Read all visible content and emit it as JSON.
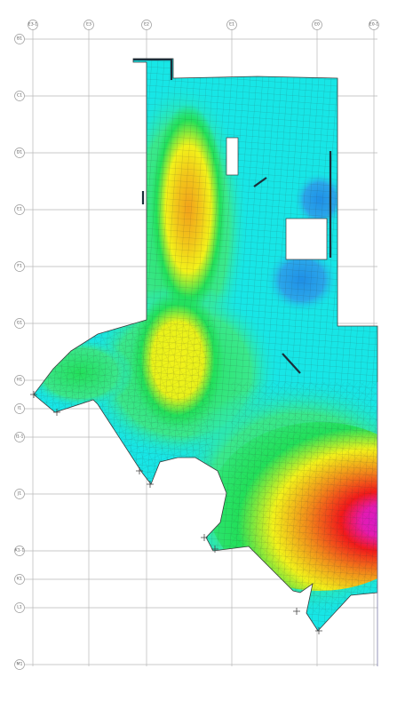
{
  "grid": {
    "vertical": [
      "E3-1",
      "E3",
      "E2",
      "E1",
      "E0",
      "E0-1"
    ],
    "horizontal": [
      "B1",
      "C1",
      "D1",
      "E1",
      "F1",
      "G1",
      "H1",
      "I1",
      "I1-1",
      "J1",
      "K1-1",
      "K1",
      "L1",
      "M1"
    ]
  },
  "legend_colors": {
    "low": "#1f8fe6",
    "cyan": "#17e6e6",
    "green": "#22e05a",
    "yellow": "#f2f21a",
    "orange": "#f2a21a",
    "red": "#f21a1a",
    "peak": "#d21ad2"
  },
  "openings": [
    "opening-rect-upper",
    "opening-rect-mid"
  ],
  "void": "circular-void"
}
